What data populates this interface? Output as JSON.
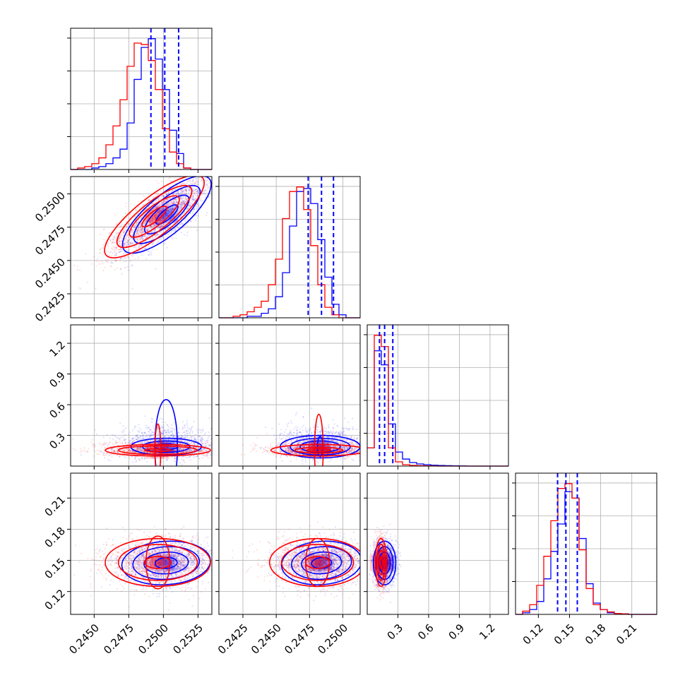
{
  "chart_data": {
    "type": "corner",
    "colors": {
      "series_a": "#0000ff",
      "series_b": "#ff0000",
      "grid": "#b0b0b0"
    },
    "params": [
      {
        "range": [
          0.2433,
          0.2535
        ],
        "ticks": [
          0.245,
          0.2475,
          0.25,
          0.2525
        ],
        "tick_labels": [
          "0.2450",
          "0.2475",
          "0.2500",
          "0.2525"
        ],
        "quantiles": [
          0.2491,
          0.2501,
          0.2511
        ],
        "hist_bins": [
          0.2433,
          0.24381,
          0.24432,
          0.24483,
          0.24534,
          0.24585,
          0.24636,
          0.24687,
          0.24738,
          0.24789,
          0.2484,
          0.24891,
          0.24942,
          0.24993,
          0.25044,
          0.25095,
          0.25146,
          0.25197,
          0.25248,
          0.25299,
          0.2535
        ],
        "hist_a": [
          0,
          0,
          0,
          0.01,
          0.02,
          0.04,
          0.08,
          0.14,
          0.32,
          0.62,
          0.84,
          0.9,
          0.76,
          0.55,
          0.27,
          0.11,
          0.01,
          0,
          0,
          0
        ],
        "hist_b": [
          0,
          0.01,
          0.02,
          0.04,
          0.08,
          0.17,
          0.3,
          0.48,
          0.71,
          0.87,
          0.86,
          0.75,
          0.55,
          0.28,
          0.12,
          0.04,
          0.01,
          0,
          0,
          0
        ]
      },
      {
        "range": [
          0.2407,
          0.2513
        ],
        "ticks": [
          0.2425,
          0.245,
          0.2475,
          0.25
        ],
        "tick_labels": [
          "0.2425",
          "0.2450",
          "0.2475",
          "0.2500"
        ],
        "quantiles": [
          0.2474,
          0.2484,
          0.2493
        ],
        "hist_bins": [
          0.2407,
          0.24123,
          0.24176,
          0.24229,
          0.24282,
          0.24335,
          0.24388,
          0.24441,
          0.24494,
          0.24547,
          0.246,
          0.24653,
          0.24706,
          0.24759,
          0.24812,
          0.24865,
          0.24918,
          0.24971,
          0.25024,
          0.25077,
          0.2513
        ],
        "hist_a": [
          0,
          0,
          0,
          0,
          0.01,
          0.01,
          0.03,
          0.06,
          0.14,
          0.3,
          0.61,
          0.84,
          0.86,
          0.76,
          0.52,
          0.27,
          0.09,
          0.02,
          0,
          0
        ],
        "hist_b": [
          0,
          0,
          0.01,
          0.02,
          0.04,
          0.07,
          0.11,
          0.22,
          0.39,
          0.66,
          0.84,
          0.87,
          0.72,
          0.48,
          0.22,
          0.07,
          0.02,
          0,
          0,
          0
        ]
      },
      {
        "range": [
          0.0,
          1.38
        ],
        "ticks": [
          0.3,
          0.6,
          0.9,
          1.2
        ],
        "tick_labels": [
          "0.3",
          "0.6",
          "0.9",
          "1.2"
        ],
        "quantiles": [
          0.12,
          0.17,
          0.25
        ],
        "hist_bins": [
          0.0,
          0.069,
          0.138,
          0.207,
          0.276,
          0.345,
          0.414,
          0.483,
          0.552,
          0.621,
          0.69,
          0.759,
          0.828,
          0.897,
          0.966,
          1.035,
          1.104,
          1.173,
          1.242,
          1.311,
          1.38
        ],
        "hist_a": [
          0.13,
          0.82,
          0.72,
          0.3,
          0.1,
          0.05,
          0.025,
          0.015,
          0.01,
          0.006,
          0.004,
          0.003,
          0.002,
          0.001,
          0,
          0,
          0,
          0,
          0,
          0
        ],
        "hist_b": [
          0.13,
          0.93,
          0.85,
          0.13,
          0.03,
          0.01,
          0.005,
          0.003,
          0.002,
          0.001,
          0,
          0,
          0,
          0,
          0,
          0,
          0,
          0,
          0,
          0
        ]
      },
      {
        "range": [
          0.098,
          0.234
        ],
        "ticks": [
          0.12,
          0.15,
          0.18,
          0.21
        ],
        "tick_labels": [
          "0.12",
          "0.15",
          "0.18",
          "0.21"
        ],
        "quantiles": [
          0.1385,
          0.1465,
          0.1575
        ],
        "hist_bins": [
          0.098,
          0.1048,
          0.1116,
          0.1184,
          0.1252,
          0.132,
          0.1388,
          0.1456,
          0.1524,
          0.1592,
          0.166,
          0.1728,
          0.1796,
          0.1864,
          0.1932,
          0.2,
          0.2068,
          0.2136,
          0.2204,
          0.2272,
          0.234
        ],
        "hist_a": [
          0,
          0.01,
          0.03,
          0.08,
          0.22,
          0.39,
          0.56,
          0.76,
          0.72,
          0.47,
          0.19,
          0.07,
          0.03,
          0.01,
          0.005,
          0.003,
          0,
          0,
          0,
          0
        ],
        "hist_b": [
          0,
          0.02,
          0.06,
          0.18,
          0.36,
          0.58,
          0.78,
          0.81,
          0.72,
          0.4,
          0.16,
          0.06,
          0.03,
          0.015,
          0.005,
          0.003,
          0,
          0,
          0,
          0
        ]
      }
    ],
    "pairs": [
      {
        "row": 1,
        "col": 0,
        "a": {
          "center": [
            0.25025,
            0.24845
          ],
          "sx": 0.0016,
          "sy": 0.00145,
          "rho": 0.78
        },
        "b": {
          "center": [
            0.24935,
            0.2483
          ],
          "sx": 0.0018,
          "sy": 0.00155,
          "rho": 0.82
        }
      },
      {
        "row": 2,
        "col": 0,
        "a": {
          "center": [
            0.2502,
            0.19
          ],
          "sx": 0.0017,
          "sy": 0.055,
          "rho": 0.0
        },
        "b": {
          "center": [
            0.2496,
            0.155
          ],
          "sx": 0.0019,
          "sy": 0.028,
          "rho": 0.0
        }
      },
      {
        "row": 2,
        "col": 1,
        "a": {
          "center": [
            0.2483,
            0.19
          ],
          "sx": 0.0015,
          "sy": 0.055,
          "rho": 0.0
        },
        "b": {
          "center": [
            0.2482,
            0.155
          ],
          "sx": 0.0018,
          "sy": 0.028,
          "rho": 0.0
        }
      },
      {
        "row": 3,
        "col": 0,
        "a": {
          "center": [
            0.2502,
            0.1475
          ],
          "sx": 0.0016,
          "sy": 0.0105,
          "rho": 0.1
        },
        "b": {
          "center": [
            0.2496,
            0.148
          ],
          "sx": 0.0019,
          "sy": 0.0115,
          "rho": 0.0
        }
      },
      {
        "row": 3,
        "col": 1,
        "a": {
          "center": [
            0.2484,
            0.1475
          ],
          "sx": 0.0015,
          "sy": 0.0105,
          "rho": 0.1
        },
        "b": {
          "center": [
            0.2481,
            0.148
          ],
          "sx": 0.0018,
          "sy": 0.0115,
          "rho": 0.0
        }
      },
      {
        "row": 3,
        "col": 2,
        "a": {
          "center": [
            0.17,
            0.1475
          ],
          "sx": 0.055,
          "sy": 0.0105,
          "rho": 0.0
        },
        "b": {
          "center": [
            0.135,
            0.148
          ],
          "sx": 0.028,
          "sy": 0.0115,
          "rho": 0.0
        }
      }
    ]
  }
}
